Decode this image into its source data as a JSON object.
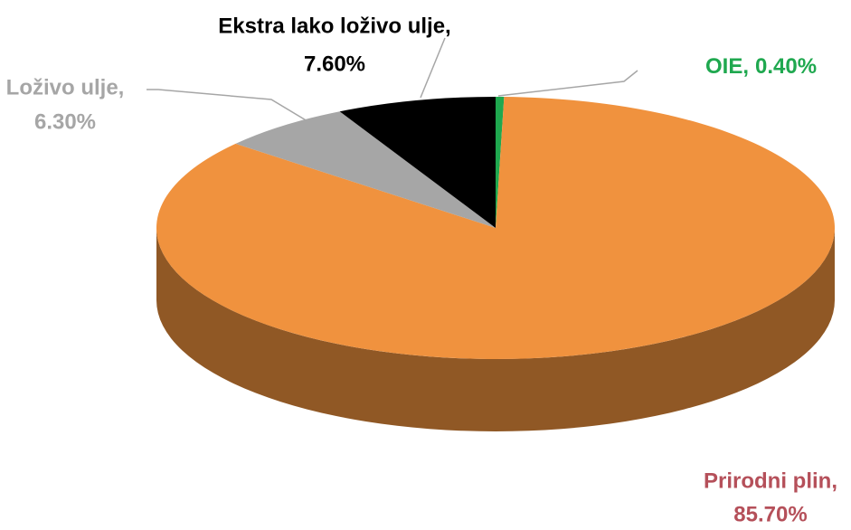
{
  "chart_data": {
    "type": "pie",
    "categories": [
      "OIE,",
      "Prirodni plin,",
      "Loživo ulje,",
      "Ekstra lako loživo ulje,"
    ],
    "values": [
      0.4,
      85.7,
      6.3,
      7.6
    ],
    "value_labels": [
      "0.40%",
      "85.70%",
      "6.30%",
      "7.60%"
    ],
    "colors": [
      "#1fa84f",
      "#f0923e",
      "#a6a6a6",
      "#000000"
    ],
    "label_colors": [
      "#1fa84f",
      "#b5505a",
      "#a6a6a6",
      "#000000"
    ],
    "style": "3d"
  }
}
